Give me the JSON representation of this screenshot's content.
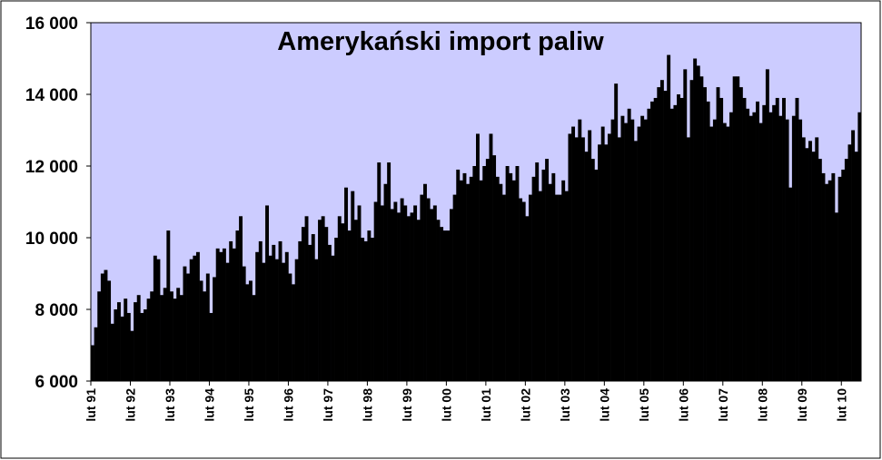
{
  "chart_data": {
    "type": "bar",
    "title": "Amerykański import paliw",
    "color": "#000000",
    "background": "#ccccff",
    "categories": [
      "lut 91",
      null,
      null,
      null,
      null,
      null,
      null,
      null,
      null,
      null,
      null,
      null,
      "lut 92",
      null,
      null,
      null,
      null,
      null,
      null,
      null,
      null,
      null,
      null,
      null,
      "lut 93",
      null,
      null,
      null,
      null,
      null,
      null,
      null,
      null,
      null,
      null,
      null,
      "lut 94",
      null,
      null,
      null,
      null,
      null,
      null,
      null,
      null,
      null,
      null,
      null,
      "lut 95",
      null,
      null,
      null,
      null,
      null,
      null,
      null,
      null,
      null,
      null,
      null,
      "lut 96",
      null,
      null,
      null,
      null,
      null,
      null,
      null,
      null,
      null,
      null,
      null,
      "lut 97",
      null,
      null,
      null,
      null,
      null,
      null,
      null,
      null,
      null,
      null,
      null,
      "lut 98",
      null,
      null,
      null,
      null,
      null,
      null,
      null,
      null,
      null,
      null,
      null,
      "lut 99",
      null,
      null,
      null,
      null,
      null,
      null,
      null,
      null,
      null,
      null,
      null,
      "lut 00",
      null,
      null,
      null,
      null,
      null,
      null,
      null,
      null,
      null,
      null,
      null,
      "lut 01",
      null,
      null,
      null,
      null,
      null,
      null,
      null,
      null,
      null,
      null,
      null,
      "lut 02",
      null,
      null,
      null,
      null,
      null,
      null,
      null,
      null,
      null,
      null,
      null,
      "lut 03",
      null,
      null,
      null,
      null,
      null,
      null,
      null,
      null,
      null,
      null,
      null,
      "lut 04",
      null,
      null,
      null,
      null,
      null,
      null,
      null,
      null,
      null,
      null,
      null,
      "lut 05",
      null,
      null,
      null,
      null,
      null,
      null,
      null,
      null,
      null,
      null,
      null,
      "lut 06",
      null,
      null,
      null,
      null,
      null,
      null,
      null,
      null,
      null,
      null,
      null,
      "lut 07",
      null,
      null,
      null,
      null,
      null,
      null,
      null,
      null,
      null,
      null,
      null,
      "lut 08",
      null,
      null,
      null,
      null,
      null,
      null,
      null,
      null,
      null,
      null,
      null,
      "lut 09",
      null,
      null,
      null,
      null,
      null,
      null,
      null,
      null,
      null,
      null,
      null,
      "lut 10",
      null,
      null,
      null,
      null,
      null
    ],
    "values": [
      7000,
      7500,
      8500,
      9000,
      9100,
      8800,
      7600,
      8000,
      8200,
      7800,
      8300,
      7900,
      7400,
      8200,
      8400,
      7900,
      8000,
      8300,
      8500,
      9500,
      9400,
      8400,
      8600,
      10200,
      8500,
      8300,
      8600,
      8400,
      9200,
      9000,
      9400,
      9500,
      9600,
      8800,
      8500,
      9000,
      7900,
      8900,
      9700,
      9600,
      9700,
      9300,
      9900,
      9700,
      10200,
      10600,
      9200,
      8700,
      8800,
      8400,
      9600,
      9900,
      9300,
      10900,
      9500,
      9800,
      9400,
      9900,
      9300,
      9600,
      9000,
      8700,
      9400,
      9900,
      10300,
      10600,
      9800,
      10100,
      9400,
      10500,
      10600,
      10300,
      9800,
      9500,
      10000,
      10600,
      10400,
      11400,
      10200,
      11300,
      10500,
      10900,
      10000,
      9900,
      10200,
      10000,
      11000,
      12100,
      10900,
      11500,
      12100,
      10800,
      11000,
      10700,
      11100,
      10900,
      10600,
      10700,
      10900,
      10500,
      11200,
      11500,
      11100,
      10800,
      10900,
      10500,
      10300,
      10200,
      10200,
      10800,
      11200,
      11900,
      11600,
      11800,
      11500,
      11700,
      12000,
      12900,
      11600,
      12000,
      12200,
      12900,
      12300,
      11700,
      11500,
      11200,
      12000,
      11800,
      11600,
      12000,
      11100,
      11000,
      10600,
      11200,
      11700,
      12100,
      11300,
      11900,
      12200,
      11500,
      11800,
      11200,
      11200,
      11600,
      11300,
      12900,
      13100,
      12800,
      13300,
      12800,
      12400,
      13000,
      12200,
      11900,
      12600,
      13100,
      12600,
      12900,
      13300,
      14300,
      12800,
      13400,
      13200,
      13600,
      13300,
      12700,
      13100,
      13400,
      13300,
      13600,
      13800,
      13900,
      14200,
      14400,
      14100,
      15100,
      13600,
      13700,
      14000,
      13900,
      14700,
      12800,
      14400,
      15000,
      14800,
      14500,
      14200,
      13800,
      13100,
      13300,
      14200,
      13900,
      13200,
      13100,
      13500,
      14500,
      14500,
      14200,
      13900,
      13600,
      13400,
      13500,
      13800,
      13200,
      13700,
      14700,
      13500,
      13700,
      13900,
      13400,
      13900,
      13300,
      11400,
      13400,
      13900,
      13300,
      12800,
      12500,
      12700,
      12400,
      12800,
      12200,
      11800,
      11500,
      11600,
      11800,
      10700,
      11700,
      11900,
      12200,
      12600,
      13000,
      12400,
      13500
    ],
    "ylim": [
      6000,
      16000
    ],
    "yticks": [
      {
        "value": 6000,
        "label": "6 000"
      },
      {
        "value": 8000,
        "label": "8 000"
      },
      {
        "value": 10000,
        "label": "10 000"
      },
      {
        "value": 12000,
        "label": "12 000"
      },
      {
        "value": 14000,
        "label": "14 000"
      },
      {
        "value": 16000,
        "label": "16 000"
      }
    ]
  }
}
